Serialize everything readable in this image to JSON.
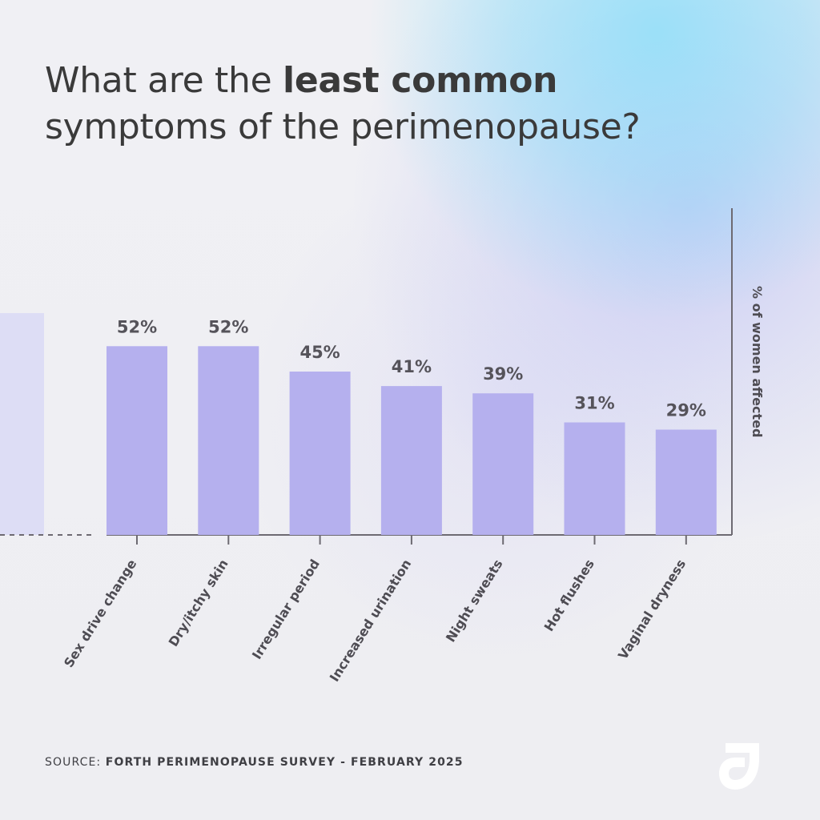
{
  "title": {
    "before": "What are the ",
    "highlight": "least common",
    "after": "symptoms of the perimenopause?"
  },
  "source": {
    "label": "SOURCE: ",
    "text": "FORTH PERIMENOPAUSE SURVEY - FEBRUARY 2025"
  },
  "colors": {
    "bar": "#b5b0ee",
    "partial_bar": "#ddddf5",
    "axis": "#6d6a72",
    "text": "#3a3a3a",
    "value_text": "#55535a",
    "label_text": "#4e4c53",
    "logo_fill": "#ffffff"
  },
  "icons": {
    "brand": "brand-logo-icon"
  },
  "chart_data": {
    "type": "bar",
    "categories": [
      "Sex drive change",
      "Dry/itchy skin",
      "Irregular period",
      "Increased urination",
      "Night sweats",
      "Hot flushes",
      "Vaginal dryness"
    ],
    "values": [
      52,
      52,
      45,
      41,
      39,
      31,
      29
    ],
    "value_labels": [
      "52%",
      "52%",
      "45%",
      "41%",
      "39%",
      "31%",
      "29%"
    ],
    "ylabel": "% of women affected",
    "ylim": [
      0,
      90
    ],
    "grid": false,
    "legend": "none"
  }
}
